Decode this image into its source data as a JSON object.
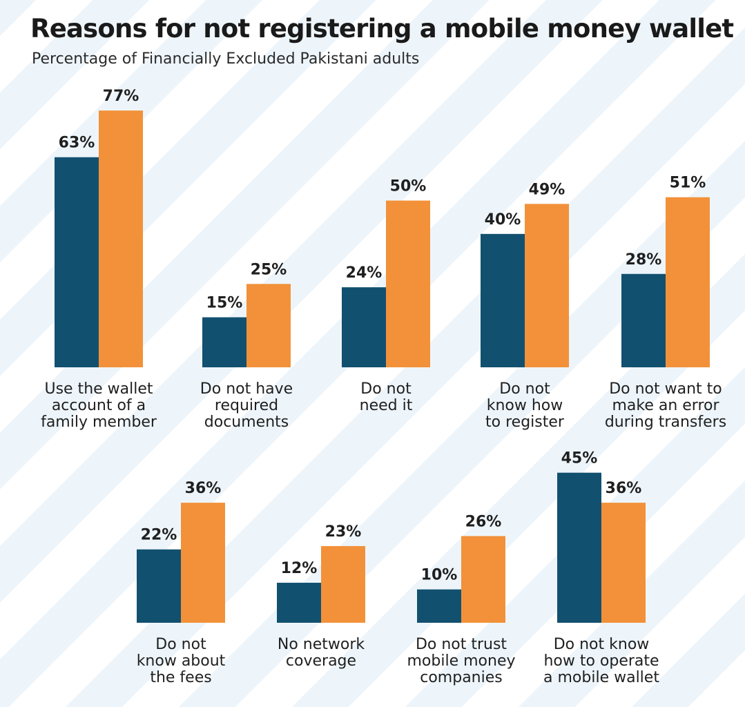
{
  "title": "Reasons for not registering a mobile money wallet",
  "subtitle": "Percentage of Financially Excluded Pakistani adults",
  "colors": {
    "series_a": "#12506f",
    "series_b": "#f2913a",
    "background_stripe": "#edf5fb"
  },
  "chart_data": {
    "type": "bar",
    "title": "Reasons for not registering a mobile money wallet",
    "subtitle": "Percentage of Financially Excluded Pakistani adults",
    "unit": "%",
    "ylim": [
      0,
      100
    ],
    "grid": false,
    "legend": "none",
    "categories": [
      [
        "Use the wallet",
        "account of a",
        "family member"
      ],
      [
        "Do not have",
        "required",
        "documents"
      ],
      [
        "Do not",
        "need it"
      ],
      [
        "Do not",
        "know how",
        "to register"
      ],
      [
        "Do not want to",
        "make an error",
        "during transfers"
      ],
      [
        "Do not",
        "know about",
        "the fees"
      ],
      [
        "No network",
        "coverage"
      ],
      [
        "Do not trust",
        "mobile money",
        "companies"
      ],
      [
        "Do not know",
        "how to operate",
        "a mobile wallet"
      ]
    ],
    "series": [
      {
        "values": [
          63,
          15,
          24,
          40,
          28,
          22,
          12,
          10,
          45
        ],
        "labels": [
          "63%",
          "15%",
          "24%",
          "40%",
          "28%",
          "22%",
          "12%",
          "10%",
          "45%"
        ]
      },
      {
        "values": [
          77,
          25,
          50,
          49,
          51,
          36,
          23,
          26,
          36
        ],
        "labels": [
          "77%",
          "25%",
          "50%",
          "49%",
          "51%",
          "36%",
          "23%",
          "26%",
          "36%"
        ]
      }
    ]
  }
}
